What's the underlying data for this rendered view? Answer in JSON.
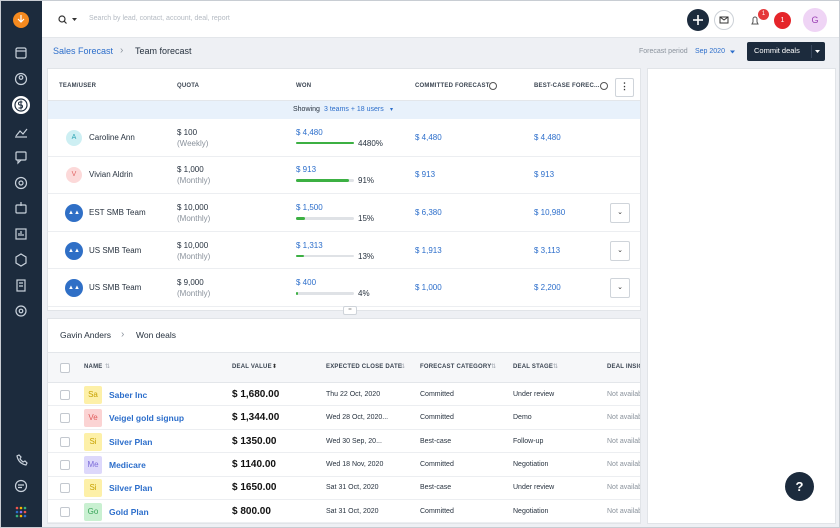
{
  "search_placeholder": "Search by lead, contact, account, deal, report",
  "header": {
    "bell_badge": "1",
    "alert_count": "1",
    "avatar": "G"
  },
  "breadcrumb": {
    "parent": "Sales Forecast",
    "current": "Team forecast"
  },
  "forecast_period": {
    "label": "Forecast period",
    "value": "Sep 2020"
  },
  "commit_button": "Commit deals",
  "forecast_table": {
    "columns": [
      "TEAM/USER",
      "QUOTA",
      "WON",
      "COMMITTED FORECAST",
      "BEST-CASE FOREC..."
    ],
    "showing": {
      "prefix": "Showing",
      "link": "3 teams + 18 users"
    },
    "rows": [
      {
        "avatar": "A",
        "avatar_color": "#cdeff3",
        "avatar_text_color": "#2aa3b3",
        "name": "Caroline Ann",
        "quota": "$ 100",
        "period": "(Weekly)",
        "won": "$ 4,480",
        "won_pct": "4480%",
        "committed": "$ 4,480",
        "best_case": "$ 4,480"
      },
      {
        "avatar": "V",
        "avatar_color": "#fcd9d9",
        "avatar_text_color": "#e06666",
        "name": "Vivian Aldrin",
        "quota": "$ 1,000",
        "period": "(Monthly)",
        "won": "$ 913",
        "won_pct": "91%",
        "committed": "$ 913",
        "best_case": "$ 913"
      },
      {
        "name": "EST SMB Team",
        "quota": "$ 10,000",
        "period": "(Monthly)",
        "won": "$ 1,500",
        "won_pct": "15%",
        "committed": "$ 6,380",
        "best_case": "$ 10,980"
      },
      {
        "name": "US SMB Team",
        "quota": "$ 10,000",
        "period": "(Monthly)",
        "won": "$ 1,313",
        "won_pct": "13%",
        "committed": "$ 1,913",
        "best_case": "$ 3,113"
      },
      {
        "name": "US SMB Team",
        "quota": "$ 9,000",
        "period": "(Monthly)",
        "won": "$ 400",
        "won_pct": "4%",
        "committed": "$ 1,000",
        "best_case": "$ 2,200"
      }
    ]
  },
  "deals_panel": {
    "breadcrumb": {
      "parent": "Gavin Anders",
      "current": "Won deals"
    },
    "columns": [
      "NAME",
      "DEAL VALUE",
      "EXPECTED CLOSE DATE",
      "FORECAST CATEGORY",
      "DEAL STAGE",
      "DEAL INSIGHTS"
    ],
    "rows": [
      {
        "tag": "Sa",
        "tag_color": "#fdf0a8",
        "tag_text_color": "#c7a100",
        "name": "Saber Inc",
        "value": "$ 1,680.00",
        "date": "Thu 22 Oct, 2020",
        "category": "Committed",
        "stage": "Under review",
        "insight": "Not available"
      },
      {
        "tag": "Ve",
        "tag_color": "#fbd3d3",
        "tag_text_color": "#e05a5a",
        "name": "Veigel gold signup",
        "value": "$ 1,344.00",
        "date": "Wed 28 Oct, 2020...",
        "category": "Committed",
        "stage": "Demo",
        "insight": "Not available"
      },
      {
        "tag": "Si",
        "tag_color": "#fdf0a8",
        "tag_text_color": "#c7a100",
        "name": "Silver Plan",
        "value": "$ 1350.00",
        "date": "Wed 30 Sep, 20...",
        "category": "Best-case",
        "stage": "Follow-up",
        "insight": "Not available"
      },
      {
        "tag": "Me",
        "tag_color": "#ddd8fb",
        "tag_text_color": "#7a6ad8",
        "name": "Medicare",
        "value": "$ 1140.00",
        "date": "Wed 18 Nov, 2020",
        "category": "Committed",
        "stage": "Negotiation",
        "insight": "Not available"
      },
      {
        "tag": "Si",
        "tag_color": "#fdf0a8",
        "tag_text_color": "#c7a100",
        "name": "Silver Plan",
        "value": "$ 1650.00",
        "date": "Sat 31 Oct, 2020",
        "category": "Best-case",
        "stage": "Under review",
        "insight": "Not available"
      },
      {
        "tag": "Go",
        "tag_color": "#c9f0d1",
        "tag_text_color": "#3aa55a",
        "name": "Gold Plan",
        "value": "$ 800.00",
        "date": "Sat 31 Oct, 2020",
        "category": "Committed",
        "stage": "Negotiation",
        "insight": "Not available"
      }
    ]
  },
  "help_button": "?"
}
